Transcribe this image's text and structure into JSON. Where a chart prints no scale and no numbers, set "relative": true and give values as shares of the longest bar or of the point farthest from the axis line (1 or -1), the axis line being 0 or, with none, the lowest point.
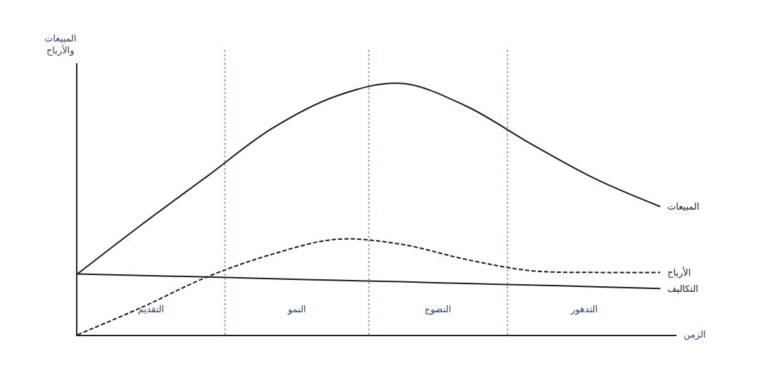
{
  "chart_data": {
    "type": "line",
    "relative": true,
    "ylabel": "المبيعات\nوالأرباح",
    "xlabel": "الزمن",
    "categories": [
      null,
      null,
      null,
      null,
      null,
      null,
      null,
      null,
      null,
      null
    ],
    "series": [
      {
        "name": "المبيعات",
        "color": "#1a1a1a",
        "line_style": "solid",
        "values": [
          0.242,
          0.44,
          0.63,
          0.82,
          0.95,
          1.0,
          0.91,
          0.76,
          0.62,
          0.51
        ]
      },
      {
        "name": "الأرباح",
        "color": "#1a1a1a",
        "line_style": "dashed",
        "values": [
          0,
          0.11,
          0.23,
          0.32,
          0.38,
          0.36,
          0.3,
          0.255,
          0.248,
          0.248
        ]
      },
      {
        "name": "التكاليف",
        "color": "#1a1a1a",
        "line_style": "solid",
        "values": [
          0.242,
          0.236,
          0.23,
          0.223,
          0.217,
          0.211,
          0.204,
          0.198,
          0.191,
          0.184
        ]
      }
    ],
    "annotations": [
      "التقديم",
      "النمو",
      "النضوج",
      "التدهور"
    ],
    "marker": "none",
    "legend": false
  }
}
